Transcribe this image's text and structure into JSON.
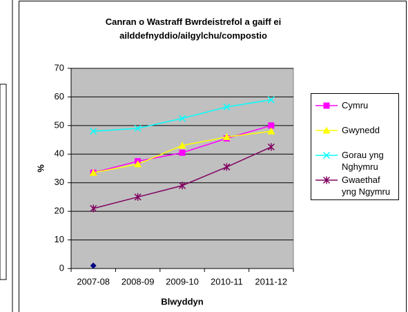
{
  "chart_data": {
    "type": "line",
    "title": "Canran o Wastraff Bwrdeistrefol a gaiff ei ailddefnyddio/ailgylchu/compostio",
    "x_label": "Blwyddyn",
    "y_label": "%",
    "categories": [
      "2007-08",
      "2008-09",
      "2009-10",
      "2010-11",
      "2011-12"
    ],
    "series": [
      {
        "name": "Cymru",
        "color": "#ff00ff",
        "marker": "square",
        "values": [
          33.5,
          37.5,
          40.5,
          45.5,
          50
        ]
      },
      {
        "name": "Gwynedd",
        "color": "#ffff00",
        "marker": "triangle",
        "values": [
          33.5,
          36.5,
          43,
          46,
          48
        ]
      },
      {
        "name": "Gorau yng Nghymru",
        "color": "#00ffff",
        "marker": "x",
        "values": [
          48,
          49,
          52.5,
          56.5,
          59
        ]
      },
      {
        "name": "Gwaethaf yng Ngymru",
        "color": "#800060",
        "marker": "star",
        "values": [
          21,
          25,
          29,
          35.5,
          42.5
        ]
      },
      {
        "color": "#000080",
        "marker": "diamond",
        "values": [
          1,
          null,
          null,
          null,
          null
        ]
      }
    ],
    "ylim": [
      0,
      70
    ],
    "yticks": [
      0,
      10,
      20,
      30,
      40,
      50,
      60,
      70
    ],
    "grid": true,
    "legend": "right"
  }
}
